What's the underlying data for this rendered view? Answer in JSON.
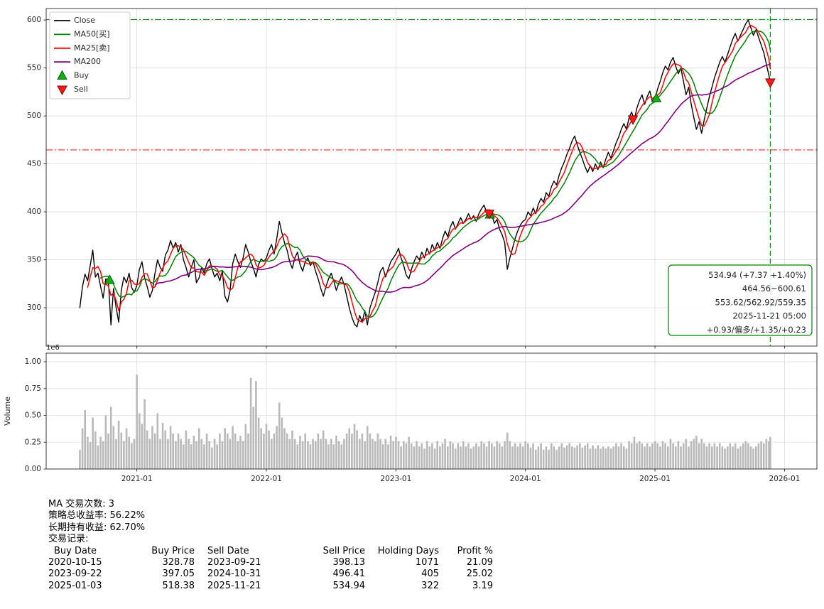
{
  "chart_data": {
    "type": "line",
    "title": "",
    "x_domain": [
      2020.3,
      2026.25
    ],
    "y_domain": [
      260,
      612
    ],
    "x_ticks": [
      {
        "v": 2021,
        "label": "2021-01"
      },
      {
        "v": 2022,
        "label": "2022-01"
      },
      {
        "v": 2023,
        "label": "2023-01"
      },
      {
        "v": 2024,
        "label": "2024-01"
      },
      {
        "v": 2025,
        "label": "2025-01"
      },
      {
        "v": 2026,
        "label": "2026-01"
      }
    ],
    "y_ticks": [
      300,
      350,
      400,
      450,
      500,
      550,
      600
    ],
    "grid": true,
    "legend_position": "top-left",
    "series": [
      {
        "name": "Close",
        "color": "#000000",
        "width": 1.4
      },
      {
        "name": "MA50[买]",
        "color": "#008000",
        "width": 1.5,
        "window": 9
      },
      {
        "name": "MA25[卖]",
        "color": "#ff0000",
        "width": 1.5,
        "window": 4
      },
      {
        "name": "MA200",
        "color": "#800080",
        "width": 1.6,
        "window": 30
      }
    ],
    "buy_label": "Buy",
    "sell_label": "Sell",
    "points": [
      [
        2020.56,
        300,
        0.18
      ],
      [
        2020.58,
        322,
        0.38
      ],
      [
        2020.6,
        335,
        0.55
      ],
      [
        2020.62,
        328,
        0.3
      ],
      [
        2020.64,
        344,
        0.25
      ],
      [
        2020.66,
        360,
        0.48
      ],
      [
        2020.68,
        332,
        0.35
      ],
      [
        2020.7,
        336,
        0.22
      ],
      [
        2020.72,
        322,
        0.3
      ],
      [
        2020.74,
        310,
        0.26
      ],
      [
        2020.76,
        330,
        0.5
      ],
      [
        2020.78,
        329,
        0.33
      ],
      [
        2020.8,
        282,
        0.58
      ],
      [
        2020.82,
        320,
        0.4
      ],
      [
        2020.84,
        300,
        0.28
      ],
      [
        2020.86,
        285,
        0.45
      ],
      [
        2020.88,
        318,
        0.34
      ],
      [
        2020.9,
        332,
        0.26
      ],
      [
        2020.92,
        326,
        0.38
      ],
      [
        2020.94,
        336,
        0.3
      ],
      [
        2020.96,
        321,
        0.24
      ],
      [
        2020.98,
        316,
        0.28
      ],
      [
        2021.0,
        323,
        0.88
      ],
      [
        2021.02,
        340,
        0.52
      ],
      [
        2021.04,
        348,
        0.42
      ],
      [
        2021.06,
        331,
        0.65
      ],
      [
        2021.08,
        322,
        0.36
      ],
      [
        2021.1,
        311,
        0.28
      ],
      [
        2021.12,
        318,
        0.4
      ],
      [
        2021.14,
        336,
        0.33
      ],
      [
        2021.16,
        350,
        0.52
      ],
      [
        2021.18,
        342,
        0.28
      ],
      [
        2021.2,
        338,
        0.43
      ],
      [
        2021.22,
        355,
        0.36
      ],
      [
        2021.24,
        360,
        0.28
      ],
      [
        2021.26,
        370,
        0.4
      ],
      [
        2021.28,
        362,
        0.33
      ],
      [
        2021.3,
        368,
        0.26
      ],
      [
        2021.32,
        358,
        0.33
      ],
      [
        2021.34,
        366,
        0.28
      ],
      [
        2021.36,
        350,
        0.23
      ],
      [
        2021.38,
        342,
        0.36
      ],
      [
        2021.4,
        332,
        0.28
      ],
      [
        2021.42,
        342,
        0.23
      ],
      [
        2021.44,
        350,
        0.31
      ],
      [
        2021.46,
        326,
        0.26
      ],
      [
        2021.48,
        331,
        0.38
      ],
      [
        2021.5,
        342,
        0.28
      ],
      [
        2021.52,
        336,
        0.23
      ],
      [
        2021.54,
        346,
        0.33
      ],
      [
        2021.56,
        351,
        0.26
      ],
      [
        2021.58,
        341,
        0.2
      ],
      [
        2021.6,
        332,
        0.28
      ],
      [
        2021.62,
        336,
        0.23
      ],
      [
        2021.64,
        328,
        0.33
      ],
      [
        2021.66,
        338,
        0.26
      ],
      [
        2021.68,
        312,
        0.38
      ],
      [
        2021.7,
        306,
        0.33
      ],
      [
        2021.72,
        318,
        0.28
      ],
      [
        2021.74,
        346,
        0.4
      ],
      [
        2021.76,
        356,
        0.33
      ],
      [
        2021.78,
        348,
        0.26
      ],
      [
        2021.8,
        342,
        0.31
      ],
      [
        2021.82,
        352,
        0.26
      ],
      [
        2021.84,
        366,
        0.42
      ],
      [
        2021.86,
        358,
        0.33
      ],
      [
        2021.88,
        348,
        0.85
      ],
      [
        2021.9,
        341,
        0.58
      ],
      [
        2021.92,
        332,
        0.82
      ],
      [
        2021.94,
        345,
        0.48
      ],
      [
        2021.96,
        351,
        0.38
      ],
      [
        2021.98,
        348,
        0.33
      ],
      [
        2022.0,
        352,
        0.42
      ],
      [
        2022.02,
        360,
        0.36
      ],
      [
        2022.04,
        366,
        0.28
      ],
      [
        2022.06,
        356,
        0.33
      ],
      [
        2022.08,
        372,
        0.4
      ],
      [
        2022.1,
        390,
        0.62
      ],
      [
        2022.12,
        378,
        0.48
      ],
      [
        2022.14,
        368,
        0.38
      ],
      [
        2022.16,
        360,
        0.33
      ],
      [
        2022.18,
        348,
        0.28
      ],
      [
        2022.2,
        341,
        0.36
      ],
      [
        2022.22,
        352,
        0.28
      ],
      [
        2022.24,
        358,
        0.23
      ],
      [
        2022.26,
        345,
        0.31
      ],
      [
        2022.28,
        338,
        0.26
      ],
      [
        2022.3,
        348,
        0.33
      ],
      [
        2022.32,
        352,
        0.26
      ],
      [
        2022.34,
        344,
        0.23
      ],
      [
        2022.36,
        348,
        0.28
      ],
      [
        2022.38,
        338,
        0.26
      ],
      [
        2022.4,
        330,
        0.33
      ],
      [
        2022.42,
        320,
        0.28
      ],
      [
        2022.44,
        312,
        0.36
      ],
      [
        2022.46,
        322,
        0.28
      ],
      [
        2022.48,
        330,
        0.23
      ],
      [
        2022.5,
        336,
        0.28
      ],
      [
        2022.52,
        328,
        0.23
      ],
      [
        2022.54,
        318,
        0.31
      ],
      [
        2022.56,
        326,
        0.26
      ],
      [
        2022.58,
        332,
        0.23
      ],
      [
        2022.6,
        324,
        0.28
      ],
      [
        2022.62,
        312,
        0.33
      ],
      [
        2022.64,
        300,
        0.38
      ],
      [
        2022.66,
        290,
        0.33
      ],
      [
        2022.68,
        283,
        0.42
      ],
      [
        2022.7,
        280,
        0.36
      ],
      [
        2022.72,
        292,
        0.28
      ],
      [
        2022.74,
        285,
        0.33
      ],
      [
        2022.76,
        297,
        0.26
      ],
      [
        2022.78,
        282,
        0.4
      ],
      [
        2022.8,
        300,
        0.33
      ],
      [
        2022.82,
        308,
        0.28
      ],
      [
        2022.84,
        316,
        0.26
      ],
      [
        2022.86,
        326,
        0.33
      ],
      [
        2022.88,
        338,
        0.28
      ],
      [
        2022.9,
        342,
        0.23
      ],
      [
        2022.92,
        332,
        0.28
      ],
      [
        2022.94,
        340,
        0.23
      ],
      [
        2022.96,
        348,
        0.31
      ],
      [
        2022.98,
        352,
        0.26
      ],
      [
        2023.0,
        356,
        0.3
      ],
      [
        2023.02,
        362,
        0.26
      ],
      [
        2023.04,
        352,
        0.21
      ],
      [
        2023.06,
        344,
        0.26
      ],
      [
        2023.08,
        334,
        0.24
      ],
      [
        2023.1,
        330,
        0.3
      ],
      [
        2023.12,
        340,
        0.24
      ],
      [
        2023.14,
        348,
        0.21
      ],
      [
        2023.16,
        354,
        0.26
      ],
      [
        2023.18,
        350,
        0.21
      ],
      [
        2023.2,
        358,
        0.24
      ],
      [
        2023.22,
        352,
        0.19
      ],
      [
        2023.24,
        362,
        0.26
      ],
      [
        2023.26,
        356,
        0.21
      ],
      [
        2023.28,
        366,
        0.24
      ],
      [
        2023.3,
        360,
        0.19
      ],
      [
        2023.32,
        368,
        0.26
      ],
      [
        2023.34,
        362,
        0.21
      ],
      [
        2023.36,
        372,
        0.24
      ],
      [
        2023.38,
        380,
        0.28
      ],
      [
        2023.4,
        374,
        0.21
      ],
      [
        2023.42,
        384,
        0.26
      ],
      [
        2023.44,
        390,
        0.24
      ],
      [
        2023.46,
        382,
        0.19
      ],
      [
        2023.48,
        388,
        0.24
      ],
      [
        2023.5,
        394,
        0.21
      ],
      [
        2023.52,
        388,
        0.26
      ],
      [
        2023.54,
        392,
        0.21
      ],
      [
        2023.56,
        398,
        0.24
      ],
      [
        2023.58,
        392,
        0.19
      ],
      [
        2023.6,
        396,
        0.21
      ],
      [
        2023.62,
        390,
        0.24
      ],
      [
        2023.64,
        398,
        0.21
      ],
      [
        2023.66,
        403,
        0.26
      ],
      [
        2023.68,
        407,
        0.24
      ],
      [
        2023.7,
        400,
        0.21
      ],
      [
        2023.72,
        398,
        0.26
      ],
      [
        2023.74,
        397,
        0.24
      ],
      [
        2023.76,
        388,
        0.21
      ],
      [
        2023.78,
        392,
        0.26
      ],
      [
        2023.8,
        382,
        0.24
      ],
      [
        2023.82,
        376,
        0.21
      ],
      [
        2023.84,
        368,
        0.26
      ],
      [
        2023.86,
        340,
        0.34
      ],
      [
        2023.88,
        352,
        0.26
      ],
      [
        2023.9,
        362,
        0.21
      ],
      [
        2023.92,
        372,
        0.24
      ],
      [
        2023.94,
        380,
        0.21
      ],
      [
        2023.96,
        386,
        0.24
      ],
      [
        2023.98,
        390,
        0.21
      ],
      [
        2024.0,
        392,
        0.26
      ],
      [
        2024.02,
        400,
        0.24
      ],
      [
        2024.04,
        396,
        0.2
      ],
      [
        2024.06,
        404,
        0.24
      ],
      [
        2024.08,
        398,
        0.18
      ],
      [
        2024.1,
        408,
        0.21
      ],
      [
        2024.12,
        414,
        0.24
      ],
      [
        2024.14,
        410,
        0.18
      ],
      [
        2024.16,
        420,
        0.21
      ],
      [
        2024.18,
        416,
        0.18
      ],
      [
        2024.2,
        426,
        0.24
      ],
      [
        2024.22,
        432,
        0.21
      ],
      [
        2024.24,
        428,
        0.18
      ],
      [
        2024.26,
        438,
        0.21
      ],
      [
        2024.28,
        446,
        0.24
      ],
      [
        2024.3,
        452,
        0.2
      ],
      [
        2024.32,
        460,
        0.22
      ],
      [
        2024.34,
        466,
        0.24
      ],
      [
        2024.36,
        474,
        0.21
      ],
      [
        2024.38,
        479,
        0.2
      ],
      [
        2024.4,
        470,
        0.22
      ],
      [
        2024.42,
        462,
        0.24
      ],
      [
        2024.44,
        455,
        0.2
      ],
      [
        2024.46,
        447,
        0.22
      ],
      [
        2024.48,
        441,
        0.24
      ],
      [
        2024.5,
        448,
        0.19
      ],
      [
        2024.52,
        442,
        0.22
      ],
      [
        2024.54,
        450,
        0.19
      ],
      [
        2024.56,
        444,
        0.22
      ],
      [
        2024.58,
        452,
        0.19
      ],
      [
        2024.6,
        446,
        0.21
      ],
      [
        2024.62,
        455,
        0.19
      ],
      [
        2024.64,
        462,
        0.21
      ],
      [
        2024.66,
        456,
        0.19
      ],
      [
        2024.68,
        464,
        0.21
      ],
      [
        2024.7,
        472,
        0.24
      ],
      [
        2024.72,
        478,
        0.21
      ],
      [
        2024.74,
        486,
        0.24
      ],
      [
        2024.76,
        492,
        0.21
      ],
      [
        2024.78,
        486,
        0.19
      ],
      [
        2024.8,
        498,
        0.26
      ],
      [
        2024.82,
        504,
        0.24
      ],
      [
        2024.84,
        496,
        0.3
      ],
      [
        2024.86,
        508,
        0.24
      ],
      [
        2024.88,
        516,
        0.26
      ],
      [
        2024.9,
        522,
        0.24
      ],
      [
        2024.92,
        512,
        0.21
      ],
      [
        2024.94,
        520,
        0.24
      ],
      [
        2024.96,
        526,
        0.21
      ],
      [
        2024.98,
        515,
        0.24
      ],
      [
        2025.0,
        518,
        0.26
      ],
      [
        2025.02,
        528,
        0.24
      ],
      [
        2025.04,
        536,
        0.21
      ],
      [
        2025.06,
        545,
        0.26
      ],
      [
        2025.08,
        552,
        0.24
      ],
      [
        2025.1,
        548,
        0.21
      ],
      [
        2025.12,
        556,
        0.28
      ],
      [
        2025.14,
        561,
        0.24
      ],
      [
        2025.16,
        552,
        0.21
      ],
      [
        2025.18,
        544,
        0.26
      ],
      [
        2025.2,
        550,
        0.21
      ],
      [
        2025.22,
        536,
        0.24
      ],
      [
        2025.24,
        522,
        0.28
      ],
      [
        2025.26,
        530,
        0.21
      ],
      [
        2025.28,
        512,
        0.26
      ],
      [
        2025.3,
        498,
        0.28
      ],
      [
        2025.32,
        486,
        0.31
      ],
      [
        2025.34,
        494,
        0.24
      ],
      [
        2025.36,
        482,
        0.28
      ],
      [
        2025.38,
        496,
        0.24
      ],
      [
        2025.4,
        508,
        0.21
      ],
      [
        2025.42,
        520,
        0.24
      ],
      [
        2025.44,
        530,
        0.21
      ],
      [
        2025.46,
        540,
        0.24
      ],
      [
        2025.48,
        548,
        0.21
      ],
      [
        2025.5,
        556,
        0.24
      ],
      [
        2025.52,
        562,
        0.21
      ],
      [
        2025.54,
        556,
        0.19
      ],
      [
        2025.56,
        564,
        0.21
      ],
      [
        2025.58,
        572,
        0.24
      ],
      [
        2025.6,
        580,
        0.21
      ],
      [
        2025.62,
        586,
        0.24
      ],
      [
        2025.64,
        578,
        0.19
      ],
      [
        2025.66,
        584,
        0.21
      ],
      [
        2025.68,
        590,
        0.24
      ],
      [
        2025.7,
        596,
        0.26
      ],
      [
        2025.72,
        600,
        0.24
      ],
      [
        2025.74,
        592,
        0.21
      ],
      [
        2025.76,
        584,
        0.19
      ],
      [
        2025.78,
        590,
        0.21
      ],
      [
        2025.8,
        582,
        0.24
      ],
      [
        2025.82,
        574,
        0.26
      ],
      [
        2025.84,
        566,
        0.24
      ],
      [
        2025.86,
        554,
        0.28
      ],
      [
        2025.88,
        542,
        0.26
      ],
      [
        2025.89,
        535,
        0.3
      ]
    ],
    "buy_markers": [
      {
        "x": 2020.79,
        "price": 328.78,
        "date": "2020-10-15"
      },
      {
        "x": 2023.725,
        "price": 397.05,
        "date": "2023-09-22"
      },
      {
        "x": 2025.01,
        "price": 518.38,
        "date": "2025-01-03"
      }
    ],
    "sell_markers": [
      {
        "x": 2023.72,
        "price": 398.13,
        "date": "2023-09-21"
      },
      {
        "x": 2024.83,
        "price": 496.41,
        "date": "2024-10-31"
      },
      {
        "x": 2025.89,
        "price": 534.94,
        "date": "2025-11-21"
      }
    ],
    "marker_colors": {
      "buy_fill": "#0faf0f",
      "buy_edge": "#065f06",
      "sell_fill": "#ff1a1a",
      "sell_edge": "#8b0000"
    },
    "hlines": [
      {
        "y": 600.61,
        "color": "#008000",
        "dash": "dashdot"
      },
      {
        "y": 464.56,
        "color": "#ff2a2a",
        "dash": "dashdot"
      }
    ],
    "vline": {
      "x": 2025.89,
      "color": "#008000",
      "dash": "dashed"
    },
    "annotation": {
      "color": "#008000",
      "lines": [
        "534.94 (+7.37 +1.40%)",
        "464.56~600.61",
        "553.62/562.92/559.35",
        "2025-11-21 05:00",
        "+0.93/偏多/+1.35/+0.23"
      ]
    },
    "volume_axis": {
      "ylabel": "Volume",
      "offset_label": "1e6",
      "y_domain": [
        0,
        1.08
      ],
      "y_ticks": [
        {
          "v": 0,
          "label": "0.00"
        },
        {
          "v": 0.25,
          "label": "0.25"
        },
        {
          "v": 0.5,
          "label": "0.50"
        },
        {
          "v": 0.75,
          "label": "0.75"
        },
        {
          "v": 1.0,
          "label": "1.00"
        }
      ],
      "bar_color": "#b9b9b9"
    }
  },
  "stats": {
    "lines": [
      "MA 交易次数: 3",
      "策略总收益率: 56.22%",
      "长期持有收益: 62.70%",
      "交易记录:"
    ]
  },
  "trades": {
    "headers": [
      "Buy Date",
      "Buy Price",
      "Sell Date",
      "Sell Price",
      "Holding Days",
      "Profit %"
    ],
    "rows": [
      [
        "2020-10-15",
        "328.78",
        "2023-09-21",
        "398.13",
        "1071",
        "21.09"
      ],
      [
        "2023-09-22",
        "397.05",
        "2024-10-31",
        "496.41",
        "405",
        "25.02"
      ],
      [
        "2025-01-03",
        "518.38",
        "2025-11-21",
        "534.94",
        "322",
        "3.19"
      ]
    ]
  }
}
